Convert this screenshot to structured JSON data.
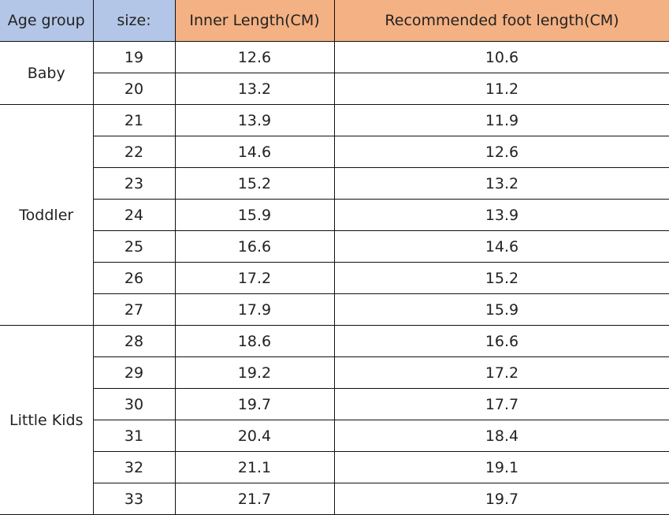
{
  "headers": {
    "age_group": "Age group",
    "size": "size:",
    "inner_length": "Inner Length(CM)",
    "foot_length": "Recommended foot length(CM)"
  },
  "colors": {
    "header_blue": "#b4c6e7",
    "header_orange": "#f4b183"
  },
  "groups": [
    {
      "label": "Baby",
      "rows": [
        [
          "19",
          "12.6",
          "10.6"
        ],
        [
          "20",
          "13.2",
          "11.2"
        ]
      ]
    },
    {
      "label": "Toddler",
      "rows": [
        [
          "21",
          "13.9",
          "11.9"
        ],
        [
          "22",
          "14.6",
          "12.6"
        ],
        [
          "23",
          "15.2",
          "13.2"
        ],
        [
          "24",
          "15.9",
          "13.9"
        ],
        [
          "25",
          "16.6",
          "14.6"
        ],
        [
          "26",
          "17.2",
          "15.2"
        ],
        [
          "27",
          "17.9",
          "15.9"
        ]
      ]
    },
    {
      "label": "Little Kids",
      "rows": [
        [
          "28",
          "18.6",
          "16.6"
        ],
        [
          "29",
          "19.2",
          "17.2"
        ],
        [
          "30",
          "19.7",
          "17.7"
        ],
        [
          "31",
          "20.4",
          "18.4"
        ],
        [
          "32",
          "21.1",
          "19.1"
        ],
        [
          "33",
          "21.7",
          "19.7"
        ]
      ]
    }
  ]
}
